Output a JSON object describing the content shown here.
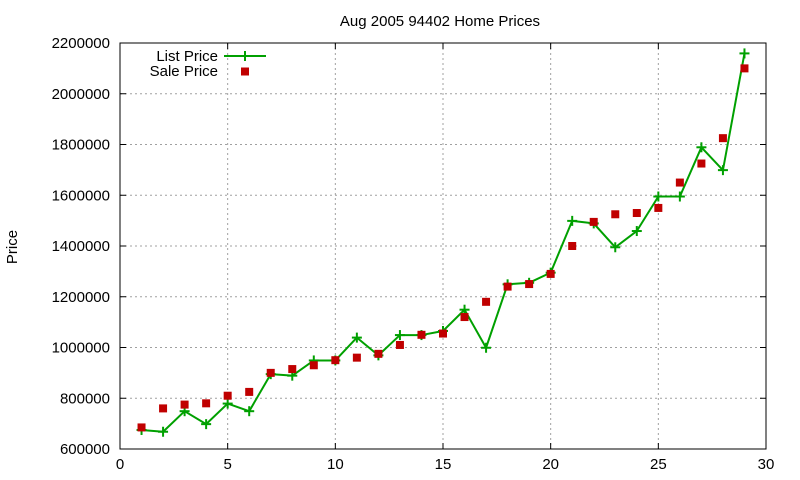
{
  "chart_data": {
    "type": "line",
    "title": "Aug 2005 94402 Home Prices",
    "xlabel": "",
    "ylabel": "Price",
    "xlim": [
      0,
      30
    ],
    "ylim": [
      600000,
      2200000
    ],
    "xticks": [
      0,
      5,
      10,
      15,
      20,
      25,
      30
    ],
    "yticks": [
      600000,
      800000,
      1000000,
      1200000,
      1400000,
      1600000,
      1800000,
      2000000,
      2200000
    ],
    "grid": true,
    "legend_position": "top-left",
    "series": [
      {
        "name": "List Price",
        "style": "line-with-plus-markers",
        "color": "#00a000",
        "x": [
          1,
          2,
          3,
          4,
          5,
          6,
          7,
          8,
          9,
          10,
          11,
          12,
          13,
          14,
          15,
          16,
          17,
          18,
          19,
          20,
          21,
          22,
          23,
          24,
          25,
          26,
          27,
          28,
          29
        ],
        "values": [
          675000,
          668000,
          749000,
          698000,
          779000,
          749000,
          895000,
          889000,
          949000,
          949000,
          1039000,
          969000,
          1049000,
          1049000,
          1065000,
          1149000,
          999000,
          1249000,
          1255000,
          1295000,
          1499000,
          1489000,
          1395000,
          1459000,
          1595000,
          1595000,
          1789000,
          1699000,
          2159000
        ]
      },
      {
        "name": "Sale Price",
        "style": "square-markers",
        "color": "#c00000",
        "x": [
          1,
          2,
          3,
          4,
          5,
          6,
          7,
          8,
          9,
          10,
          11,
          12,
          13,
          14,
          15,
          16,
          17,
          18,
          19,
          20,
          21,
          22,
          23,
          24,
          25,
          26,
          27,
          28,
          29
        ],
        "values": [
          685000,
          760000,
          775000,
          780000,
          810000,
          825000,
          900000,
          915000,
          930000,
          950000,
          960000,
          975000,
          1010000,
          1050000,
          1055000,
          1120000,
          1180000,
          1240000,
          1250000,
          1290000,
          1400000,
          1495000,
          1525000,
          1530000,
          1550000,
          1650000,
          1725000,
          1825000,
          2100000
        ]
      }
    ]
  }
}
